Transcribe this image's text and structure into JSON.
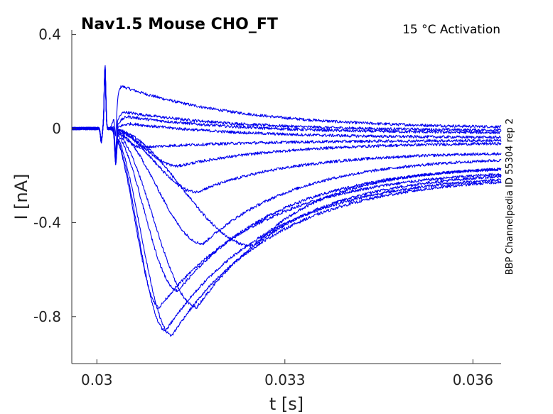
{
  "chart_data": {
    "type": "line",
    "title": "Nav1.5  Mouse  CHO_FT",
    "subtitle": "15 °C  Activation",
    "side_note": "BBP Channelpedia ID 55304 rep 2",
    "xlabel": "t [s]",
    "ylabel": "I [nA]",
    "xlim": [
      0.0296,
      0.03645
    ],
    "ylim": [
      -1.0,
      0.42
    ],
    "x_ticks": [
      {
        "value": 0.03,
        "label": "0.03"
      },
      {
        "value": 0.033,
        "label": "0.033"
      },
      {
        "value": 0.036,
        "label": "0.036"
      }
    ],
    "y_ticks": [
      {
        "value": 0.4,
        "label": "0.4"
      },
      {
        "value": 0.0,
        "label": "0"
      },
      {
        "value": -0.4,
        "label": "-0.4"
      },
      {
        "value": -0.8,
        "label": "-0.8"
      }
    ],
    "grid": false,
    "line_color": "#0000ee",
    "stimulus_onset_s": 0.0302,
    "series": [
      {
        "peak_time_s": 0.0304,
        "peak_current_nA": 0.18,
        "end_current_nA": 0.0
      },
      {
        "peak_time_s": 0.03045,
        "peak_current_nA": 0.07,
        "end_current_nA": -0.01
      },
      {
        "peak_time_s": 0.0305,
        "peak_current_nA": 0.05,
        "end_current_nA": -0.02
      },
      {
        "peak_time_s": 0.03055,
        "peak_current_nA": 0.02,
        "end_current_nA": -0.04
      },
      {
        "peak_time_s": 0.0307,
        "peak_current_nA": -0.08,
        "end_current_nA": -0.05
      },
      {
        "peak_time_s": 0.0313,
        "peak_current_nA": -0.16,
        "end_current_nA": -0.06
      },
      {
        "peak_time_s": 0.0316,
        "peak_current_nA": -0.27,
        "end_current_nA": -0.1
      },
      {
        "peak_time_s": 0.0317,
        "peak_current_nA": -0.49,
        "end_current_nA": -0.12
      },
      {
        "peak_time_s": 0.0325,
        "peak_current_nA": -0.5,
        "end_current_nA": -0.16
      },
      {
        "peak_time_s": 0.0313,
        "peak_current_nA": -0.69,
        "end_current_nA": -0.15
      },
      {
        "peak_time_s": 0.031,
        "peak_current_nA": -0.76,
        "end_current_nA": -0.17
      },
      {
        "peak_time_s": 0.0316,
        "peak_current_nA": -0.76,
        "end_current_nA": -0.18
      },
      {
        "peak_time_s": 0.0311,
        "peak_current_nA": -0.86,
        "end_current_nA": -0.19
      },
      {
        "peak_time_s": 0.0312,
        "peak_current_nA": -0.88,
        "end_current_nA": -0.2
      }
    ]
  }
}
